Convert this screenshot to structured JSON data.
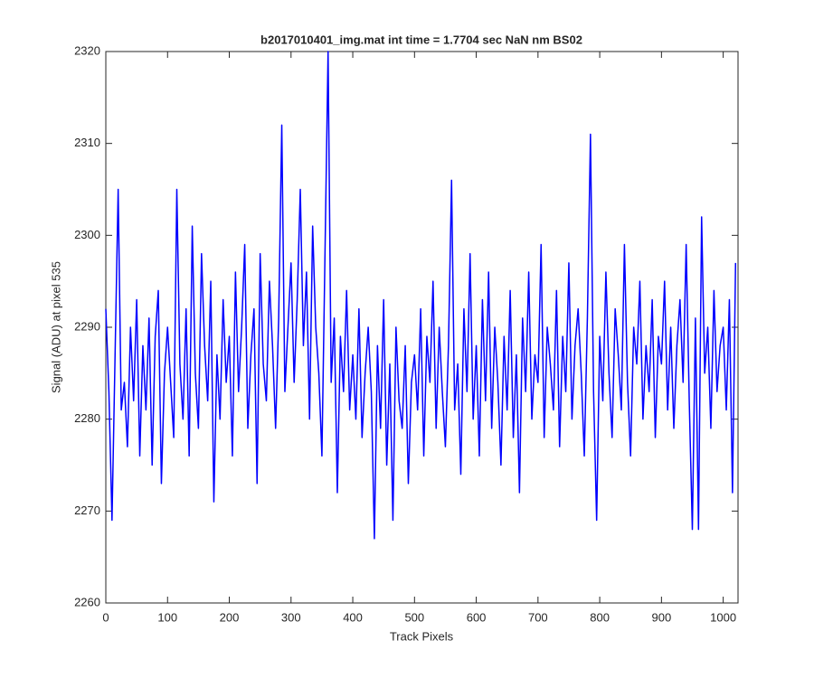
{
  "chart_data": {
    "type": "line",
    "title": "b2017010401_img.mat int time = 1.7704 sec  NaN nm BS02",
    "xlabel": "Track Pixels",
    "ylabel": "Signal (ADU) at pixel 535",
    "xlim": [
      0,
      1024
    ],
    "xticks": [
      0,
      100,
      200,
      300,
      400,
      500,
      600,
      700,
      800,
      900,
      1000
    ],
    "ylim": [
      2260,
      2320
    ],
    "yticks": [
      2260,
      2270,
      2280,
      2290,
      2300,
      2310,
      2320
    ],
    "grid": false,
    "x": [
      0,
      5,
      10,
      15,
      20,
      25,
      30,
      35,
      40,
      45,
      50,
      55,
      60,
      65,
      70,
      75,
      80,
      85,
      90,
      95,
      100,
      105,
      110,
      115,
      120,
      125,
      130,
      135,
      140,
      145,
      150,
      155,
      160,
      165,
      170,
      175,
      180,
      185,
      190,
      195,
      200,
      205,
      210,
      215,
      220,
      225,
      230,
      235,
      240,
      245,
      250,
      255,
      260,
      265,
      270,
      275,
      280,
      285,
      290,
      295,
      300,
      305,
      310,
      315,
      320,
      325,
      330,
      335,
      340,
      345,
      350,
      355,
      360,
      365,
      370,
      375,
      380,
      385,
      390,
      395,
      400,
      405,
      410,
      415,
      420,
      425,
      430,
      435,
      440,
      445,
      450,
      455,
      460,
      465,
      470,
      475,
      480,
      485,
      490,
      495,
      500,
      505,
      510,
      515,
      520,
      525,
      530,
      535,
      540,
      545,
      550,
      555,
      560,
      565,
      570,
      575,
      580,
      585,
      590,
      595,
      600,
      605,
      610,
      615,
      620,
      625,
      630,
      635,
      640,
      645,
      650,
      655,
      660,
      665,
      670,
      675,
      680,
      685,
      690,
      695,
      700,
      705,
      710,
      715,
      720,
      725,
      730,
      735,
      740,
      745,
      750,
      755,
      760,
      765,
      770,
      775,
      780,
      785,
      790,
      795,
      800,
      805,
      810,
      815,
      820,
      825,
      830,
      835,
      840,
      845,
      850,
      855,
      860,
      865,
      870,
      875,
      880,
      885,
      890,
      895,
      900,
      905,
      910,
      915,
      920,
      925,
      930,
      935,
      940,
      945,
      950,
      955,
      960,
      965,
      970,
      975,
      980,
      985,
      990,
      995,
      1000,
      1005,
      1010,
      1015,
      1020
    ],
    "series": [
      {
        "color": "#0000ff",
        "values": [
          2292,
          2283,
          2269,
          2287,
          2305,
          2281,
          2284,
          2277,
          2290,
          2282,
          2293,
          2276,
          2288,
          2281,
          2291,
          2275,
          2289,
          2294,
          2273,
          2285,
          2290,
          2284,
          2278,
          2305,
          2286,
          2280,
          2292,
          2276,
          2301,
          2285,
          2279,
          2298,
          2288,
          2282,
          2295,
          2271,
          2287,
          2280,
          2293,
          2284,
          2289,
          2276,
          2296,
          2283,
          2290,
          2299,
          2279,
          2287,
          2292,
          2273,
          2298,
          2286,
          2282,
          2295,
          2288,
          2279,
          2291,
          2312,
          2283,
          2290,
          2297,
          2284,
          2293,
          2305,
          2288,
          2296,
          2280,
          2301,
          2290,
          2285,
          2276,
          2298,
          2320,
          2284,
          2291,
          2272,
          2289,
          2283,
          2294,
          2281,
          2287,
          2280,
          2292,
          2278,
          2285,
          2290,
          2283,
          2267,
          2288,
          2279,
          2293,
          2275,
          2286,
          2269,
          2290,
          2282,
          2279,
          2288,
          2273,
          2284,
          2287,
          2281,
          2292,
          2276,
          2289,
          2284,
          2295,
          2279,
          2290,
          2283,
          2277,
          2288,
          2306,
          2281,
          2286,
          2274,
          2292,
          2283,
          2298,
          2280,
          2288,
          2276,
          2293,
          2282,
          2296,
          2279,
          2290,
          2284,
          2275,
          2289,
          2281,
          2294,
          2278,
          2287,
          2272,
          2291,
          2283,
          2296,
          2280,
          2287,
          2284,
          2299,
          2278,
          2290,
          2286,
          2281,
          2294,
          2277,
          2289,
          2283,
          2297,
          2280,
          2288,
          2292,
          2285,
          2276,
          2291,
          2311,
          2283,
          2269,
          2289,
          2282,
          2296,
          2285,
          2278,
          2292,
          2287,
          2281,
          2299,
          2284,
          2276,
          2290,
          2286,
          2295,
          2280,
          2288,
          2283,
          2293,
          2278,
          2289,
          2286,
          2295,
          2281,
          2290,
          2279,
          2288,
          2293,
          2284,
          2299,
          2282,
          2268,
          2291,
          2268,
          2302,
          2285,
          2290,
          2279,
          2294,
          2283,
          2288,
          2290,
          2281,
          2293,
          2272,
          2297
        ]
      }
    ]
  }
}
